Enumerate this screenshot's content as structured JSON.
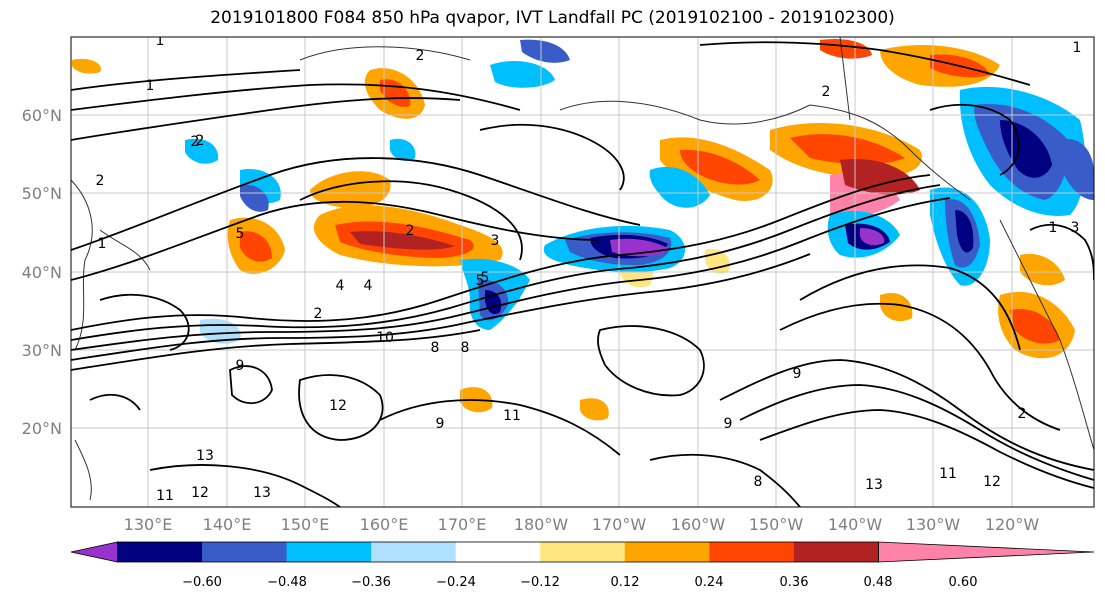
{
  "title": "2019101800 F084 850 hPa qvapor, IVT Landfall PC (2019102100 - 2019102300)",
  "map": {
    "lat_labels": [
      "60°N",
      "50°N",
      "40°N",
      "30°N",
      "20°N"
    ],
    "lon_labels": [
      "130°E",
      "140°E",
      "150°E",
      "160°E",
      "170°E",
      "180°W",
      "170°W",
      "160°W",
      "150°W",
      "140°W",
      "130°W",
      "120°W"
    ],
    "contour_labels": [
      "1",
      "2",
      "1",
      "2",
      "2",
      "3",
      "2",
      "5",
      "2",
      "4",
      "5",
      "10",
      "8",
      "9",
      "12",
      "11",
      "9",
      "13",
      "12",
      "13",
      "11",
      "8",
      "9",
      "9",
      "8",
      "13",
      "11",
      "12",
      "2",
      "1",
      "3",
      "2",
      "1",
      "1",
      "2",
      "5",
      "4"
    ]
  },
  "colorbar": {
    "ticks": [
      "−0.60",
      "−0.48",
      "−0.36",
      "−0.24",
      "−0.12",
      "0.12",
      "0.24",
      "0.36",
      "0.48",
      "0.60"
    ],
    "colors": [
      "#9932cc",
      "#000080",
      "#3a5cc8",
      "#00bfff",
      "#b0e0ff",
      "#ffffff",
      "#ffe680",
      "#ffa500",
      "#ff4500",
      "#b22222",
      "#ff82ab"
    ]
  }
}
